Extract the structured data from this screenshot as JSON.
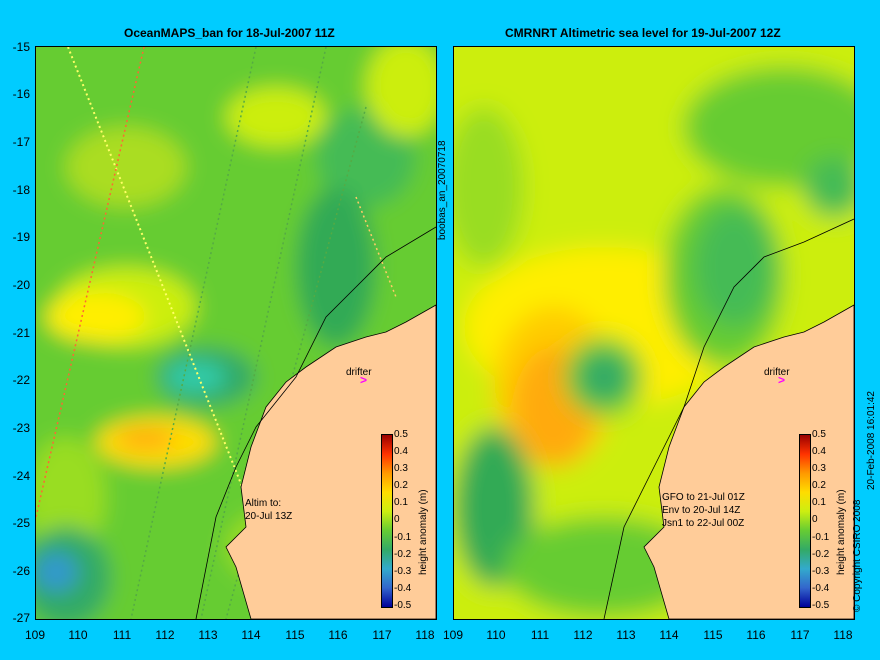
{
  "left_title": "OceanMAPS_ban for 18-Jul-2007 11Z",
  "right_title": "CMRNRT Altimetric sea level  for 19-Jul-2007 12Z",
  "y_ticks": [
    "-15",
    "-16",
    "-17",
    "-18",
    "-19",
    "-20",
    "-21",
    "-22",
    "-23",
    "-24",
    "-25",
    "-26",
    "-27"
  ],
  "x_ticks": [
    "109",
    "110",
    "111",
    "112",
    "113",
    "114",
    "115",
    "116",
    "117",
    "118"
  ],
  "center_label": "boobas_an_20070718",
  "colorbar": {
    "labels": [
      "0.5",
      "0.4",
      "0.3",
      "0.2",
      "0.1",
      "0",
      "-0.1",
      "-0.2",
      "-0.3",
      "-0.4",
      "-0.5"
    ],
    "title": "height anomaly (m)"
  },
  "drifter_label": "drifter",
  "left_note": [
    "Altim to:",
    "20-Jul 13Z"
  ],
  "right_note": [
    "GFO to 21-Jul 01Z",
    "Env to 20-Jul 14Z",
    "Jsn1 to 22-Jul 00Z"
  ],
  "copyright": "© Copyright CSIRO 2008",
  "timestamp": "20-Feb-2008 16:01:42",
  "colors": {
    "background": "#00ccff",
    "land": "#ffcc99",
    "drifter": "#ff00ff"
  }
}
